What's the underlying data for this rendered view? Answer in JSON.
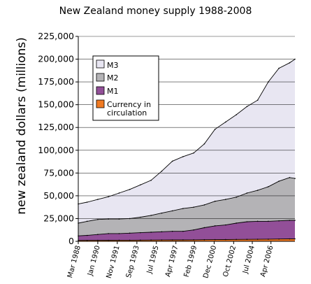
{
  "chart_data": {
    "type": "area",
    "title": "New Zealand money supply 1988-2008",
    "ylabel": "new zealand dollars (millions)",
    "xlabel": "",
    "ylim": [
      0,
      225000
    ],
    "xlim": [
      1988.17,
      2008.5
    ],
    "grid": "horizontal",
    "legend_position": "top-left",
    "y_ticks": [
      0,
      25000,
      50000,
      75000,
      100000,
      125000,
      150000,
      175000,
      200000,
      225000
    ],
    "y_tick_labels": [
      "0",
      "25,000",
      "50,000",
      "75,000",
      "100,000",
      "125,000",
      "150,000",
      "175,000",
      "200,000",
      "225,000"
    ],
    "x_ticks": [
      1988.17,
      1990.0,
      1991.83,
      1993.67,
      1995.5,
      1997.33,
      1999.08,
      2000.92,
      2002.75,
      2004.5,
      2006.25
    ],
    "x_tick_labels": [
      "Mar 1988",
      "Jan 1990",
      "Nov 1991",
      "Sep 1993",
      "Jul 1995",
      "Apr 1997",
      "Feb 1999",
      "Dec 2000",
      "Oct 2002",
      "Jul 2004",
      "Apr 2006"
    ],
    "x": [
      1988.17,
      1989.0,
      1990.0,
      1991.0,
      1992.0,
      1993.0,
      1994.0,
      1995.0,
      1996.0,
      1997.0,
      1998.0,
      1999.0,
      2000.0,
      2001.0,
      2002.0,
      2003.0,
      2004.0,
      2005.0,
      2006.0,
      2007.0,
      2008.0,
      2008.5
    ],
    "series": [
      {
        "name": "M3",
        "color": "#e8e6f2",
        "values": [
          41000,
          43000,
          46000,
          49000,
          53000,
          57000,
          62000,
          67000,
          77000,
          88000,
          93000,
          97000,
          107000,
          123000,
          131000,
          139000,
          148000,
          155000,
          175000,
          190000,
          196000,
          200000
        ]
      },
      {
        "name": "M2",
        "color": "#b4b3b6",
        "values": [
          20000,
          22000,
          24000,
          24500,
          24500,
          25000,
          26500,
          28500,
          31000,
          33500,
          36000,
          37500,
          40000,
          44000,
          46000,
          48500,
          53000,
          56000,
          60000,
          66000,
          70000,
          69000
        ]
      },
      {
        "name": "M1",
        "color": "#924f98",
        "values": [
          6000,
          6500,
          7500,
          8500,
          8500,
          9000,
          9500,
          10000,
          10500,
          11000,
          11000,
          12500,
          15000,
          17000,
          18000,
          20000,
          21500,
          22000,
          22000,
          22500,
          23000,
          23000
        ]
      },
      {
        "name": "Currency in circulation",
        "color": "#f07a22",
        "values": [
          1000,
          1050,
          1100,
          1150,
          1200,
          1250,
          1300,
          1400,
          1450,
          1500,
          1550,
          1650,
          1750,
          1850,
          1950,
          2050,
          2150,
          2250,
          2350,
          2500,
          2650,
          2700
        ]
      }
    ]
  }
}
